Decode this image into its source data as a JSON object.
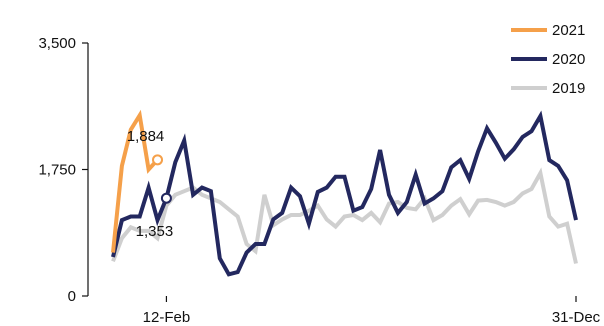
{
  "chart_data": {
    "type": "line",
    "title": "",
    "xlabel": "",
    "ylabel": "",
    "ylim": [
      0,
      3500
    ],
    "yticks": [
      {
        "value": 0,
        "label": "0"
      },
      {
        "value": 1750,
        "label": "1,750"
      },
      {
        "value": 3500,
        "label": "3,500"
      }
    ],
    "xlim": [
      1,
      53
    ],
    "xticks": [
      {
        "week": 7,
        "label": "12-Feb"
      },
      {
        "week": 53,
        "label": "31-Dec"
      }
    ],
    "grid": false,
    "legend_position": "top-right",
    "series": [
      {
        "name": "2021",
        "color": "#F5A04A",
        "values": [
          600,
          1800,
          2300,
          2500,
          1750,
          1884
        ]
      },
      {
        "name": "2020",
        "color": "#23285F",
        "values": [
          540,
          1050,
          1100,
          1100,
          1500,
          1050,
          1353,
          1850,
          2150,
          1400,
          1500,
          1450,
          520,
          300,
          330,
          600,
          720,
          720,
          1060,
          1150,
          1500,
          1380,
          1000,
          1440,
          1500,
          1650,
          1650,
          1180,
          1230,
          1480,
          2020,
          1400,
          1150,
          1300,
          1680,
          1280,
          1350,
          1450,
          1780,
          1880,
          1620,
          2000,
          2320,
          2120,
          1900,
          2030,
          2200,
          2280,
          2490,
          1880,
          1800,
          1600,
          1050
        ]
      },
      {
        "name": "2019",
        "color": "#CFCFCF",
        "values": [
          480,
          800,
          950,
          900,
          900,
          800,
          1250,
          1400,
          1450,
          1500,
          1400,
          1350,
          1300,
          1200,
          1100,
          720,
          620,
          1400,
          980,
          1060,
          1120,
          1120,
          1180,
          1250,
          1060,
          960,
          1100,
          1120,
          1050,
          1150,
          1020,
          1280,
          1300,
          1220,
          1200,
          1350,
          1050,
          1120,
          1250,
          1340,
          1130,
          1320,
          1330,
          1300,
          1250,
          1300,
          1420,
          1480,
          1700,
          1100,
          960,
          1000,
          450
        ]
      }
    ],
    "annotations": [
      {
        "series": "2021",
        "week": 6,
        "value": 1884,
        "label": "1,884",
        "label_side": "above"
      },
      {
        "series": "2020",
        "week": 7,
        "value": 1353,
        "label": "1,353",
        "label_side": "below"
      }
    ]
  }
}
